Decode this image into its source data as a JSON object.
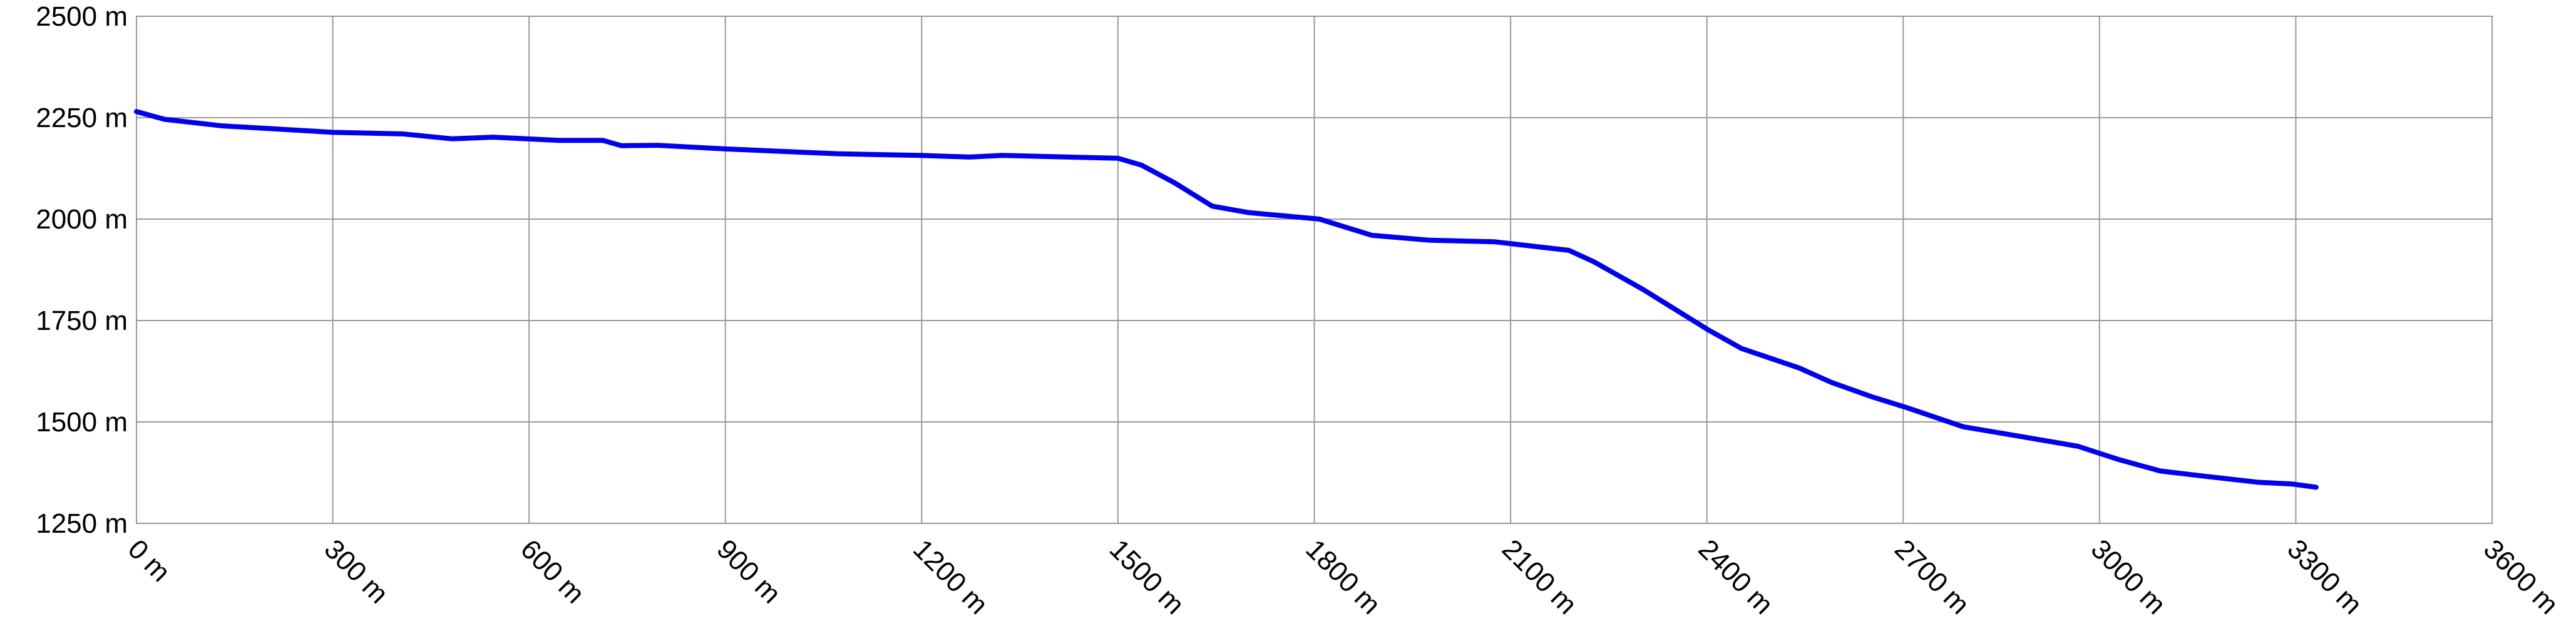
{
  "chart_data": {
    "type": "line",
    "x": [
      0,
      43,
      130,
      300,
      407,
      482,
      545,
      645,
      713,
      741,
      796,
      900,
      1072,
      1198,
      1273,
      1323,
      1500,
      1536,
      1587,
      1644,
      1700,
      1808,
      1888,
      1976,
      2076,
      2189,
      2227,
      2302,
      2403,
      2453,
      2541,
      2591,
      2654,
      2704,
      2792,
      2880,
      2967,
      3030,
      3093,
      3156,
      3244,
      3294,
      3331
    ],
    "series": [
      {
        "color": "#0000ee",
        "values": [
          2265,
          2246,
          2230,
          2214,
          2210,
          2198,
          2202,
          2194,
          2194,
          2181,
          2182,
          2173,
          2161,
          2157,
          2153,
          2157,
          2150,
          2133,
          2089,
          2032,
          2016,
          2000,
          1960,
          1948,
          1944,
          1923,
          1895,
          1827,
          1726,
          1681,
          1633,
          1597,
          1561,
          1536,
          1488,
          1464,
          1440,
          1407,
          1379,
          1367,
          1351,
          1347,
          1339
        ]
      }
    ],
    "xlim": [
      0,
      3600
    ],
    "xticks": [
      {
        "value": 0,
        "label": "0 m"
      },
      {
        "value": 300,
        "label": "300 m"
      },
      {
        "value": 600,
        "label": "600 m"
      },
      {
        "value": 900,
        "label": "900 m"
      },
      {
        "value": 1200,
        "label": "1200 m"
      },
      {
        "value": 1500,
        "label": "1500 m"
      },
      {
        "value": 1800,
        "label": "1800 m"
      },
      {
        "value": 2100,
        "label": "2100 m"
      },
      {
        "value": 2400,
        "label": "2400 m"
      },
      {
        "value": 2700,
        "label": "2700 m"
      },
      {
        "value": 3000,
        "label": "3000 m"
      },
      {
        "value": 3300,
        "label": "3300 m"
      },
      {
        "value": 3600,
        "label": "3600 m"
      }
    ],
    "ylim": [
      1250,
      2500
    ],
    "yticks": [
      {
        "value": 1250,
        "label": "1250 m"
      },
      {
        "value": 1500,
        "label": "1500 m"
      },
      {
        "value": 1750,
        "label": "1750 m"
      },
      {
        "value": 2000,
        "label": "2000 m"
      },
      {
        "value": 2250,
        "label": "2250 m"
      },
      {
        "value": 2500,
        "label": "2500 m"
      }
    ],
    "grid": true
  }
}
